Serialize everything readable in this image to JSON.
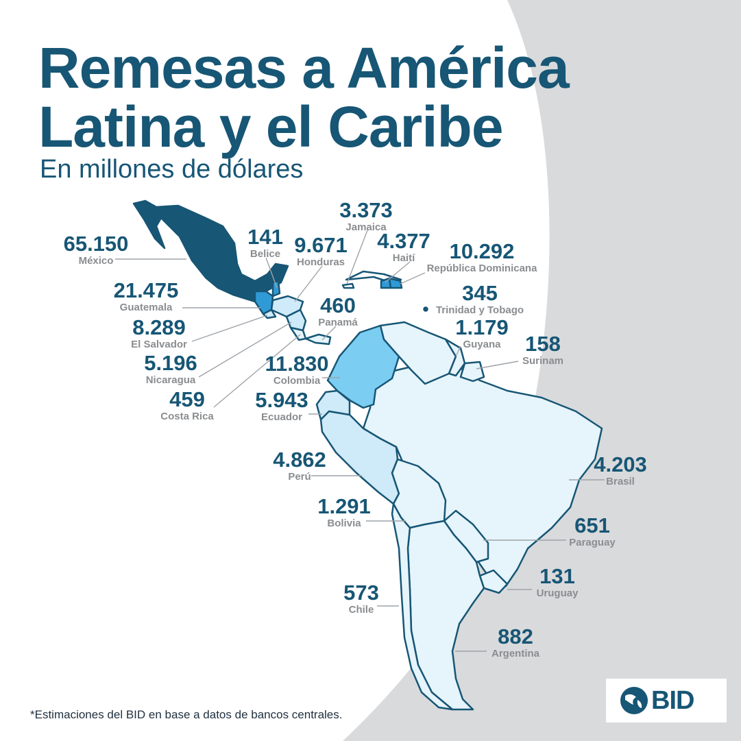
{
  "header": {
    "title_line1": "Remesas a América",
    "title_line2": "Latina y el Caribe",
    "subtitle": "En millones de dólares"
  },
  "colors": {
    "dark": "#175675",
    "mid": "#2f9ad6",
    "light_blue": "#7ccdf2",
    "pale": "#cfeaf8",
    "palest": "#e6f4fb",
    "background_white": "#ffffff",
    "background_grey": "#d9dadc"
  },
  "countries": [
    {
      "id": "mexico",
      "name": "México",
      "value": "65.150"
    },
    {
      "id": "belice",
      "name": "Belice",
      "value": "141"
    },
    {
      "id": "honduras",
      "name": "Honduras",
      "value": "9.671"
    },
    {
      "id": "jamaica",
      "name": "Jamaica",
      "value": "3.373"
    },
    {
      "id": "haiti",
      "name": "Haití",
      "value": "4.377"
    },
    {
      "id": "republica-dominicana",
      "name": "República Dominicana",
      "value": "10.292"
    },
    {
      "id": "guatemala",
      "name": "Guatemala",
      "value": "21.475"
    },
    {
      "id": "panama",
      "name": "Panamá",
      "value": "460"
    },
    {
      "id": "trinidad-y-tobago",
      "name": "Trinidad y Tobago",
      "value": "345"
    },
    {
      "id": "el-salvador",
      "name": "El Salvador",
      "value": "8.289"
    },
    {
      "id": "guyana",
      "name": "Guyana",
      "value": "1.179"
    },
    {
      "id": "surinam",
      "name": "Surinam",
      "value": "158"
    },
    {
      "id": "nicaragua",
      "name": "Nicaragua",
      "value": "5.196"
    },
    {
      "id": "colombia",
      "name": "Colombia",
      "value": "11.830"
    },
    {
      "id": "costa-rica",
      "name": "Costa Rica",
      "value": "459"
    },
    {
      "id": "ecuador",
      "name": "Ecuador",
      "value": "5.943"
    },
    {
      "id": "peru",
      "name": "Perú",
      "value": "4.862"
    },
    {
      "id": "brasil",
      "name": "Brasil",
      "value": "4.203"
    },
    {
      "id": "bolivia",
      "name": "Bolivia",
      "value": "1.291"
    },
    {
      "id": "paraguay",
      "name": "Paraguay",
      "value": "651"
    },
    {
      "id": "uruguay",
      "name": "Uruguay",
      "value": "131"
    },
    {
      "id": "chile",
      "name": "Chile",
      "value": "573"
    },
    {
      "id": "argentina",
      "name": "Argentina",
      "value": "882"
    }
  ],
  "footnote": "*Estimaciones del BID en base a datos de bancos centrales.",
  "logo": {
    "text": "BID",
    "icon": "globe-icon"
  }
}
